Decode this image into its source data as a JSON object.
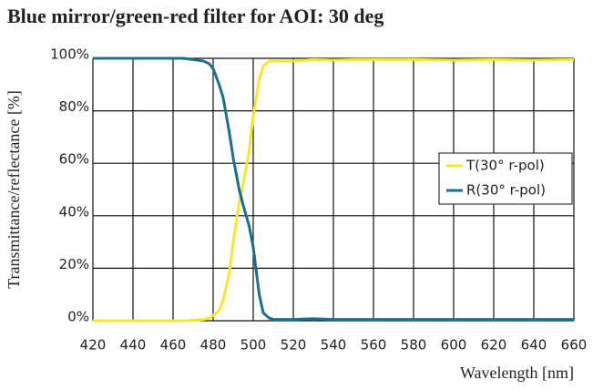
{
  "chart_data": {
    "type": "line",
    "title": "Blue mirror/green-red filter for AOI: 30 deg",
    "xlabel": "Wavelength [nm]",
    "ylabel": "Transmittance/reflectance [%]",
    "x": [
      420,
      430,
      440,
      450,
      460,
      465,
      470,
      475,
      478,
      480,
      483,
      485,
      488,
      490,
      493,
      495,
      498,
      500,
      503,
      505,
      508,
      510,
      515,
      520,
      530,
      540,
      550,
      560,
      580,
      600,
      620,
      640,
      660
    ],
    "series": [
      {
        "name": "T(30° r-pol)",
        "color": "#f5e82a",
        "values": [
          0,
          0,
          0,
          0,
          0,
          0,
          0.2,
          0.5,
          1,
          2,
          4,
          8,
          18,
          30,
          45,
          52,
          65,
          78,
          92,
          97,
          99,
          99,
          99,
          99,
          99.5,
          99.3,
          99.5,
          99.5,
          99.5,
          99.3,
          99.5,
          99.3,
          99.5
        ]
      },
      {
        "name": "R(30° r-pol)",
        "color": "#1a6e8e",
        "values": [
          100,
          100,
          100,
          100,
          100,
          100,
          99.5,
          99,
          98,
          96,
          90,
          85,
          72,
          62,
          50,
          44,
          36,
          28,
          10,
          3,
          1,
          0.5,
          0.5,
          0.5,
          0.8,
          0.5,
          0.5,
          0.5,
          0.5,
          0.5,
          0.5,
          0.5,
          0.5
        ]
      }
    ],
    "xlim": [
      420,
      660
    ],
    "xticks": [
      420,
      440,
      460,
      480,
      500,
      520,
      540,
      560,
      580,
      600,
      620,
      640,
      660
    ],
    "ylim": [
      0,
      100
    ],
    "yticks": [
      {
        "value": 0,
        "label": "0%"
      },
      {
        "value": 20,
        "label": "20%"
      },
      {
        "value": 40,
        "label": "40%"
      },
      {
        "value": 60,
        "label": "60%"
      },
      {
        "value": 80,
        "label": "80%"
      },
      {
        "value": 100,
        "label": "100%"
      }
    ],
    "grid": true,
    "legend": "right"
  }
}
